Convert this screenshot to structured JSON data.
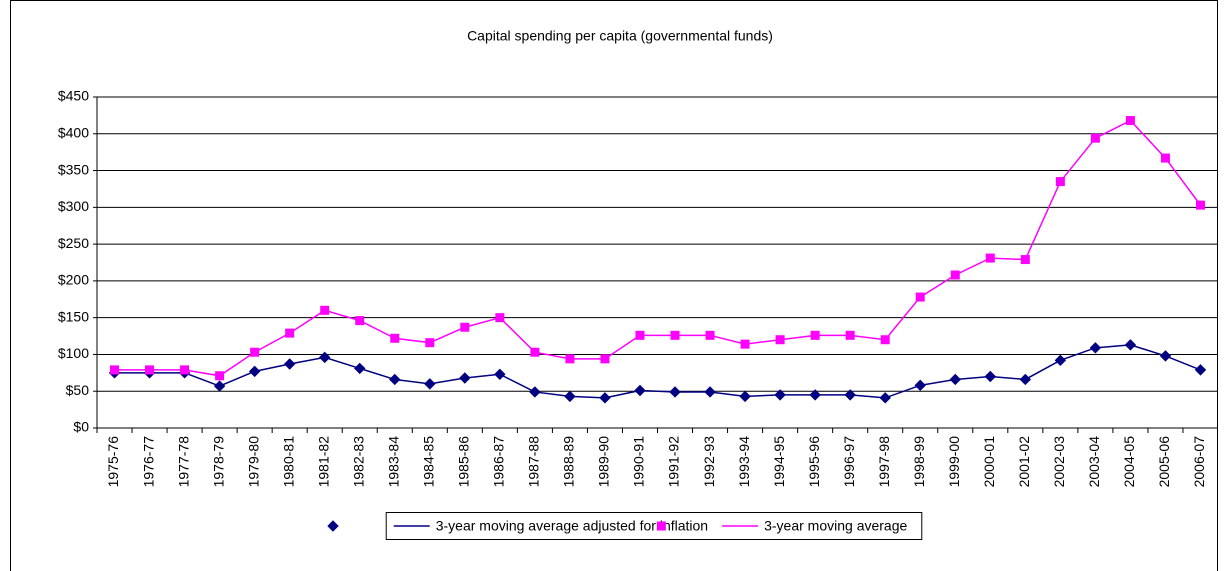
{
  "chart_data": {
    "type": "line",
    "title": "Capital spending per capita (governmental funds)",
    "categories": [
      "1975-76",
      "1976-77",
      "1977-78",
      "1978-79",
      "1979-80",
      "1980-81",
      "1981-82",
      "1982-83",
      "1983-84",
      "1984-85",
      "1985-86",
      "1986-87",
      "1987-88",
      "1988-89",
      "1989-90",
      "1990-91",
      "1991-92",
      "1992-93",
      "1993-94",
      "1994-95",
      "1995-96",
      "1996-97",
      "1997-98",
      "1998-99",
      "1999-00",
      "2000-01",
      "2001-02",
      "2002-03",
      "2003-04",
      "2004-05",
      "2005-06",
      "2006-07"
    ],
    "series": [
      {
        "name": "3-year moving average adjusted for inflation",
        "color": "#000080",
        "marker": "diamond",
        "values": [
          75,
          75,
          75,
          57,
          77,
          87,
          96,
          81,
          66,
          60,
          68,
          73,
          49,
          43,
          41,
          51,
          49,
          49,
          43,
          45,
          45,
          45,
          41,
          58,
          66,
          70,
          66,
          92,
          109,
          113,
          98,
          79
        ]
      },
      {
        "name": "3-year moving average",
        "color": "#ff00ff",
        "marker": "square",
        "values": [
          79,
          79,
          79,
          71,
          103,
          129,
          160,
          146,
          122,
          116,
          137,
          150,
          103,
          94,
          94,
          126,
          126,
          126,
          114,
          120,
          126,
          126,
          120,
          178,
          208,
          231,
          229,
          335,
          394,
          418,
          367,
          303
        ]
      }
    ],
    "ylim": [
      0,
      450
    ],
    "yticks": [
      {
        "value": 0,
        "label": "$0"
      },
      {
        "value": 50,
        "label": "$50"
      },
      {
        "value": 100,
        "label": "$100"
      },
      {
        "value": 150,
        "label": "$150"
      },
      {
        "value": 200,
        "label": "$200"
      },
      {
        "value": 250,
        "label": "$250"
      },
      {
        "value": 300,
        "label": "$300"
      },
      {
        "value": 350,
        "label": "$350"
      },
      {
        "value": 400,
        "label": "$400"
      },
      {
        "value": 450,
        "label": "$450"
      }
    ],
    "grid": true,
    "legend": "bottom"
  }
}
